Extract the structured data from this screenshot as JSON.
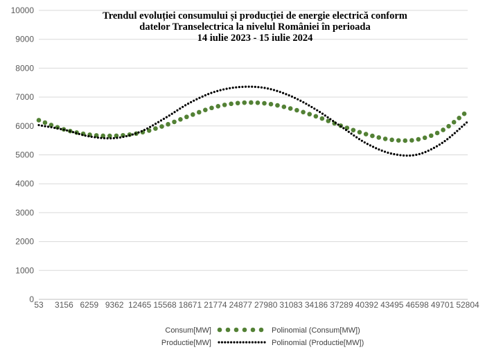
{
  "chart_data": {
    "type": "line",
    "title_lines": [
      "Trendul evoluției consumului și producției de energie electrică conform",
      "datelor Transelectrica la nivelul României în perioada",
      "14 iulie 2023 - 15 iulie 2024"
    ],
    "x_tick_labels": [
      "53",
      "3156",
      "6259",
      "9362",
      "12465",
      "15568",
      "18671",
      "21774",
      "24877",
      "27980",
      "31083",
      "34186",
      "37289",
      "40392",
      "43495",
      "46598",
      "49701",
      "52804"
    ],
    "x_range": [
      53,
      52804
    ],
    "y_ticks": [
      0,
      1000,
      2000,
      3000,
      4000,
      5000,
      6000,
      7000,
      8000,
      9000,
      10000
    ],
    "y_tick_labels": [
      "0",
      "1000",
      "2000",
      "3000",
      "4000",
      "5000",
      "6000",
      "7000",
      "8000",
      "9000",
      "10000"
    ],
    "ylim": [
      0,
      10000
    ],
    "grid": "horizontal",
    "legend_position": "bottom",
    "series": [
      {
        "name": "Polinomial (Consum[MW])",
        "legend_label": "Polinomial (Consum[MW])",
        "style": "green-dots",
        "color": "#538135",
        "x": [
          53,
          3156,
          6259,
          9362,
          12465,
          15568,
          18671,
          21774,
          24877,
          27980,
          31083,
          34186,
          37289,
          40392,
          43495,
          46598,
          49701,
          52804
        ],
        "values": [
          6200,
          5880,
          5700,
          5660,
          5760,
          6020,
          6360,
          6660,
          6800,
          6780,
          6600,
          6330,
          6000,
          5710,
          5520,
          5530,
          5850,
          6520
        ]
      },
      {
        "name": "Polinomial (Productie[MW])",
        "legend_label": "Polinomial (Productie[MW])",
        "style": "black-dots",
        "color": "#000000",
        "x": [
          53,
          3156,
          6259,
          9362,
          12465,
          15568,
          18671,
          21774,
          24877,
          27980,
          31083,
          34186,
          37289,
          40392,
          43495,
          46598,
          49701,
          52804
        ],
        "values": [
          6030,
          5870,
          5640,
          5580,
          5790,
          6270,
          6810,
          7190,
          7350,
          7310,
          7030,
          6560,
          5970,
          5390,
          5040,
          5010,
          5420,
          6150
        ]
      }
    ],
    "legend_entries": [
      {
        "label": "Consum[MW]",
        "style": "none",
        "color": ""
      },
      {
        "label": "Polinomial (Consum[MW])",
        "style": "green-dots",
        "color": "#538135"
      },
      {
        "label": "Productie[MW]",
        "style": "none",
        "color": ""
      },
      {
        "label": "Polinomial (Productie[MW])",
        "style": "black-dots",
        "color": "#000000"
      }
    ],
    "gridline_color": "#d9d9d9",
    "axis_color": "#bfbfbf"
  }
}
